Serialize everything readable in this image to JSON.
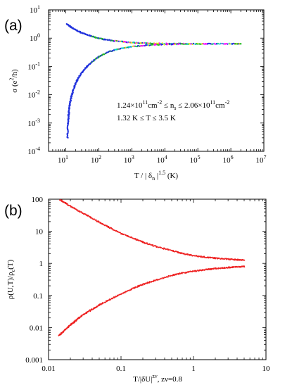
{
  "chart_data": [
    {
      "type": "scatter",
      "panel_label": "(a)",
      "xscale": "log",
      "yscale": "log",
      "xlim": [
        3,
        10000000
      ],
      "ylim": [
        0.0001,
        10
      ],
      "xticks": [
        {
          "value": 10,
          "base": "10",
          "exp": "1"
        },
        {
          "value": 100,
          "base": "10",
          "exp": "2"
        },
        {
          "value": 1000,
          "base": "10",
          "exp": "3"
        },
        {
          "value": 10000,
          "base": "10",
          "exp": "4"
        },
        {
          "value": 100000,
          "base": "10",
          "exp": "5"
        },
        {
          "value": 1000000,
          "base": "10",
          "exp": "6"
        },
        {
          "value": 10000000,
          "base": "10",
          "exp": "7"
        }
      ],
      "yticks": [
        {
          "value": 0.0001,
          "base": "10",
          "exp": "-4"
        },
        {
          "value": 0.001,
          "base": "10",
          "exp": "-3"
        },
        {
          "value": 0.01,
          "base": "10",
          "exp": "-2"
        },
        {
          "value": 0.1,
          "base": "10",
          "exp": "-1"
        },
        {
          "value": 1,
          "base": "10",
          "exp": "0"
        },
        {
          "value": 10,
          "base": "10",
          "exp": "1"
        }
      ],
      "xlabel": {
        "main": "T / | δ",
        "sub": "n",
        "tail": " |",
        "sup": "1.5",
        "after": " (K)"
      },
      "ylabel": {
        "main": "σ (e",
        "sup": "2",
        "after": "/h)"
      },
      "annotation": {
        "line1": {
          "a": "1.24×10",
          "a_sup": "11",
          "b": "cm",
          "b_sup": "-2",
          "c": " ≤ n",
          "c_sub": "s",
          "d": " ≤ 2.06×10",
          "d_sup": "11",
          "e": "cm",
          "e_sup": "-2"
        },
        "line2": "1.32 K ≤ T ≤ 3.5 K"
      },
      "colors": [
        "#2233dd",
        "#22bb22",
        "#e6e600",
        "#ff00ff",
        "#00cccc"
      ],
      "series": [
        {
          "branch": "upper",
          "points": [
            [
              11,
              3.1
            ],
            [
              14,
              2.5
            ],
            [
              20,
              1.95
            ],
            [
              30,
              1.55
            ],
            [
              50,
              1.25
            ],
            [
              80,
              1.05
            ],
            [
              150,
              0.9
            ],
            [
              300,
              0.8
            ],
            [
              700,
              0.72
            ],
            [
              1500,
              0.68
            ],
            [
              5000,
              0.65
            ],
            [
              20000,
              0.64
            ],
            [
              100000,
              0.63
            ],
            [
              1000000,
              0.63
            ],
            [
              2000000,
              0.63
            ]
          ]
        },
        {
          "branch": "lower",
          "points": [
            [
              11.2,
              0.0003
            ],
            [
              11.6,
              0.0009
            ],
            [
              12.2,
              0.002
            ],
            [
              13,
              0.004
            ],
            [
              14.5,
              0.008
            ],
            [
              17,
              0.015
            ],
            [
              20,
              0.026
            ],
            [
              27,
              0.05
            ],
            [
              40,
              0.09
            ],
            [
              60,
              0.14
            ],
            [
              100,
              0.22
            ],
            [
              200,
              0.33
            ],
            [
              400,
              0.42
            ],
            [
              1000,
              0.5
            ],
            [
              3000,
              0.56
            ],
            [
              10000,
              0.6
            ],
            [
              50000,
              0.62
            ],
            [
              300000,
              0.63
            ],
            [
              2000000,
              0.63
            ]
          ]
        }
      ]
    },
    {
      "type": "scatter",
      "panel_label": "(b)",
      "xscale": "log",
      "yscale": "log",
      "xlim": [
        0.01,
        10
      ],
      "ylim": [
        0.001,
        100
      ],
      "xticks": [
        {
          "value": 0.01,
          "label": "0.01"
        },
        {
          "value": 0.1,
          "label": "0.1"
        },
        {
          "value": 1,
          "label": "1"
        },
        {
          "value": 10,
          "label": "10"
        }
      ],
      "yticks": [
        {
          "value": 0.001,
          "label": "0.001"
        },
        {
          "value": 0.01,
          "label": "0.01"
        },
        {
          "value": 0.1,
          "label": "0.1"
        },
        {
          "value": 1,
          "label": "1"
        },
        {
          "value": 10,
          "label": "10"
        },
        {
          "value": 100,
          "label": "100"
        }
      ],
      "xlabel": {
        "main": "T/|δU|",
        "sup": "zν",
        "after": ", zν=0.8"
      },
      "ylabel": {
        "main": "ρ(U,T)/ρ",
        "sub": "c",
        "after": "(T)"
      },
      "color": "#ee2222",
      "series": [
        {
          "branch": "upper",
          "points": [
            [
              0.0145,
              95
            ],
            [
              0.018,
              70
            ],
            [
              0.025,
              45
            ],
            [
              0.035,
              30
            ],
            [
              0.05,
              19
            ],
            [
              0.07,
              13
            ],
            [
              0.1,
              8.5
            ],
            [
              0.15,
              6
            ],
            [
              0.2,
              4.6
            ],
            [
              0.3,
              3.4
            ],
            [
              0.5,
              2.5
            ],
            [
              0.7,
              2.05
            ],
            [
              1,
              1.75
            ],
            [
              1.5,
              1.55
            ],
            [
              2,
              1.45
            ],
            [
              3,
              1.35
            ],
            [
              4,
              1.3
            ],
            [
              5,
              1.27
            ]
          ]
        },
        {
          "branch": "lower",
          "points": [
            [
              0.014,
              0.0058
            ],
            [
              0.016,
              0.0075
            ],
            [
              0.02,
              0.012
            ],
            [
              0.025,
              0.018
            ],
            [
              0.03,
              0.025
            ],
            [
              0.04,
              0.037
            ],
            [
              0.05,
              0.05
            ],
            [
              0.07,
              0.075
            ],
            [
              0.1,
              0.11
            ],
            [
              0.15,
              0.17
            ],
            [
              0.2,
              0.22
            ],
            [
              0.3,
              0.3
            ],
            [
              0.5,
              0.42
            ],
            [
              0.7,
              0.5
            ],
            [
              1,
              0.57
            ],
            [
              1.5,
              0.64
            ],
            [
              2,
              0.69
            ],
            [
              3,
              0.74
            ],
            [
              4,
              0.78
            ],
            [
              5,
              0.8
            ]
          ]
        }
      ]
    }
  ]
}
